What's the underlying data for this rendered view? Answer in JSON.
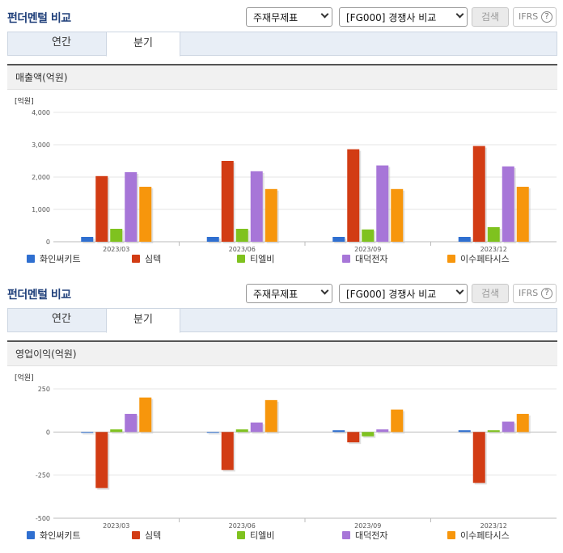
{
  "panels": [
    {
      "title": "펀더멘털 비교",
      "select_type": "주재무제표",
      "select_compare": "[FG000] 경쟁사 비교",
      "search_label": "검색",
      "ifrs_label": "IFRS",
      "help_glyph": "?",
      "tabs": [
        {
          "label": "연간"
        },
        {
          "label": "분기"
        }
      ],
      "active_tab": "분기",
      "chart_title": "매출액(억원)"
    },
    {
      "title": "펀더멘털 비교",
      "select_type": "주재무제표",
      "select_compare": "[FG000] 경쟁사 비교",
      "search_label": "검색",
      "ifrs_label": "IFRS",
      "help_glyph": "?",
      "tabs": [
        {
          "label": "연간"
        },
        {
          "label": "분기"
        }
      ],
      "active_tab": "분기",
      "chart_title": "영업이익(억원)"
    }
  ],
  "icons": {
    "select_arrow": "chevron-down-icon",
    "help": "question-circle-icon"
  },
  "chart_data": [
    {
      "type": "bar",
      "title": "매출액(억원)",
      "unit_label": "[억원]",
      "categories": [
        "2023/03",
        "2023/06",
        "2023/09",
        "2023/12"
      ],
      "ylim": [
        0,
        4000
      ],
      "yticks": [
        0,
        1000,
        2000,
        3000,
        4000
      ],
      "ytick_labels": [
        "0",
        "1,000",
        "2,000",
        "3,000",
        "4,000"
      ],
      "grid": true,
      "legend_position": "bottom",
      "series": [
        {
          "name": "화인써키트",
          "color": "#2f6fd0",
          "values": [
            150,
            150,
            150,
            150
          ]
        },
        {
          "name": "심텍",
          "color": "#d23c14",
          "values": [
            2030,
            2500,
            2860,
            2960
          ]
        },
        {
          "name": "티엘비",
          "color": "#7fc21f",
          "values": [
            400,
            400,
            380,
            450
          ]
        },
        {
          "name": "대덕전자",
          "color": "#a776d8",
          "values": [
            2150,
            2180,
            2360,
            2330
          ]
        },
        {
          "name": "이수페타시스",
          "color": "#f7960c",
          "values": [
            1700,
            1630,
            1630,
            1700
          ]
        }
      ]
    },
    {
      "type": "bar",
      "title": "영업이익(억원)",
      "unit_label": "[억원]",
      "categories": [
        "2023/03",
        "2023/06",
        "2023/09",
        "2023/12"
      ],
      "ylim": [
        -500,
        250
      ],
      "yticks": [
        -500,
        -250,
        0,
        250
      ],
      "ytick_labels": [
        "-500",
        "-250",
        "0",
        "250"
      ],
      "grid": true,
      "legend_position": "bottom",
      "series": [
        {
          "name": "화인써키트",
          "color": "#2f6fd0",
          "values": [
            -5,
            -5,
            10,
            10
          ]
        },
        {
          "name": "심텍",
          "color": "#d23c14",
          "values": [
            -325,
            -220,
            -60,
            -295
          ]
        },
        {
          "name": "티엘비",
          "color": "#7fc21f",
          "values": [
            15,
            15,
            -25,
            10
          ]
        },
        {
          "name": "대덕전자",
          "color": "#a776d8",
          "values": [
            105,
            55,
            15,
            60
          ]
        },
        {
          "name": "이수페타시스",
          "color": "#f7960c",
          "values": [
            200,
            185,
            130,
            105
          ]
        }
      ]
    }
  ]
}
